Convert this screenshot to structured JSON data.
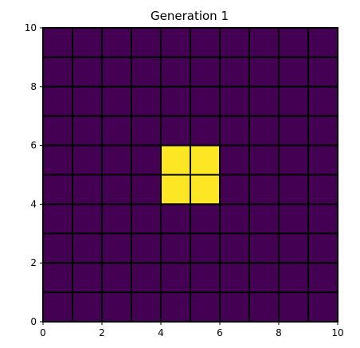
{
  "chart_data": {
    "type": "heatmap",
    "title": "Generation 1",
    "xlabel": "",
    "ylabel": "",
    "xlim": [
      0,
      10
    ],
    "ylim": [
      0,
      10
    ],
    "xticks": [
      0,
      2,
      4,
      6,
      8,
      10
    ],
    "yticks": [
      0,
      2,
      4,
      6,
      8,
      10
    ],
    "grid": true,
    "grid_color": "#000000",
    "colors": {
      "dead": "#440154",
      "alive": "#fde725"
    },
    "rows_top_to_bottom": [
      [
        0,
        0,
        0,
        0,
        0,
        0,
        0,
        0,
        0,
        0
      ],
      [
        0,
        0,
        0,
        0,
        0,
        0,
        0,
        0,
        0,
        0
      ],
      [
        0,
        0,
        0,
        0,
        0,
        0,
        0,
        0,
        0,
        0
      ],
      [
        0,
        0,
        0,
        0,
        0,
        0,
        0,
        0,
        0,
        0
      ],
      [
        0,
        0,
        0,
        0,
        1,
        1,
        0,
        0,
        0,
        0
      ],
      [
        0,
        0,
        0,
        0,
        1,
        1,
        0,
        0,
        0,
        0
      ],
      [
        0,
        0,
        0,
        0,
        0,
        0,
        0,
        0,
        0,
        0
      ],
      [
        0,
        0,
        0,
        0,
        0,
        0,
        0,
        0,
        0,
        0
      ],
      [
        0,
        0,
        0,
        0,
        0,
        0,
        0,
        0,
        0,
        0
      ],
      [
        0,
        0,
        0,
        0,
        0,
        0,
        0,
        0,
        0,
        0
      ]
    ]
  }
}
